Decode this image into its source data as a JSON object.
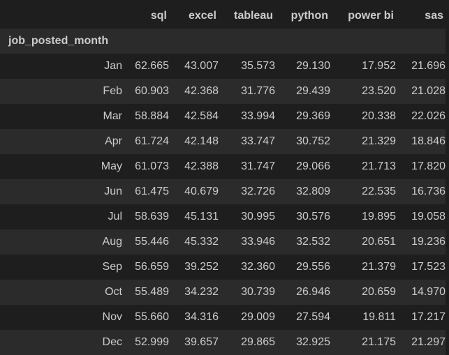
{
  "table": {
    "index_name": "job_posted_month",
    "columns": [
      "sql",
      "excel",
      "tableau",
      "python",
      "power bi",
      "sas"
    ],
    "rows": [
      {
        "label": "Jan",
        "values": [
          "62.665",
          "43.007",
          "35.573",
          "29.130",
          "17.952",
          "21.696"
        ]
      },
      {
        "label": "Feb",
        "values": [
          "60.903",
          "42.368",
          "31.776",
          "29.439",
          "23.520",
          "21.028"
        ]
      },
      {
        "label": "Mar",
        "values": [
          "58.884",
          "42.584",
          "33.994",
          "29.369",
          "20.338",
          "22.026"
        ]
      },
      {
        "label": "Apr",
        "values": [
          "61.724",
          "42.148",
          "33.747",
          "30.752",
          "21.329",
          "18.846"
        ]
      },
      {
        "label": "May",
        "values": [
          "61.073",
          "42.388",
          "31.747",
          "29.066",
          "21.713",
          "17.820"
        ]
      },
      {
        "label": "Jun",
        "values": [
          "61.475",
          "40.679",
          "32.726",
          "32.809",
          "22.535",
          "16.736"
        ]
      },
      {
        "label": "Jul",
        "values": [
          "58.639",
          "45.131",
          "30.995",
          "30.576",
          "19.895",
          "19.058"
        ]
      },
      {
        "label": "Aug",
        "values": [
          "55.446",
          "45.332",
          "33.946",
          "32.532",
          "20.651",
          "19.236"
        ]
      },
      {
        "label": "Sep",
        "values": [
          "56.659",
          "39.252",
          "32.360",
          "29.556",
          "21.379",
          "17.523"
        ]
      },
      {
        "label": "Oct",
        "values": [
          "55.489",
          "34.232",
          "30.739",
          "26.946",
          "20.659",
          "14.970"
        ]
      },
      {
        "label": "Nov",
        "values": [
          "55.660",
          "34.316",
          "29.009",
          "27.594",
          "19.811",
          "17.217"
        ]
      },
      {
        "label": "Dec",
        "values": [
          "52.999",
          "39.657",
          "29.865",
          "32.925",
          "21.175",
          "21.297"
        ]
      }
    ]
  },
  "colors": {
    "background": "#1e1e1e",
    "stripe": "#2b2b2b",
    "text": "#cccccc"
  }
}
